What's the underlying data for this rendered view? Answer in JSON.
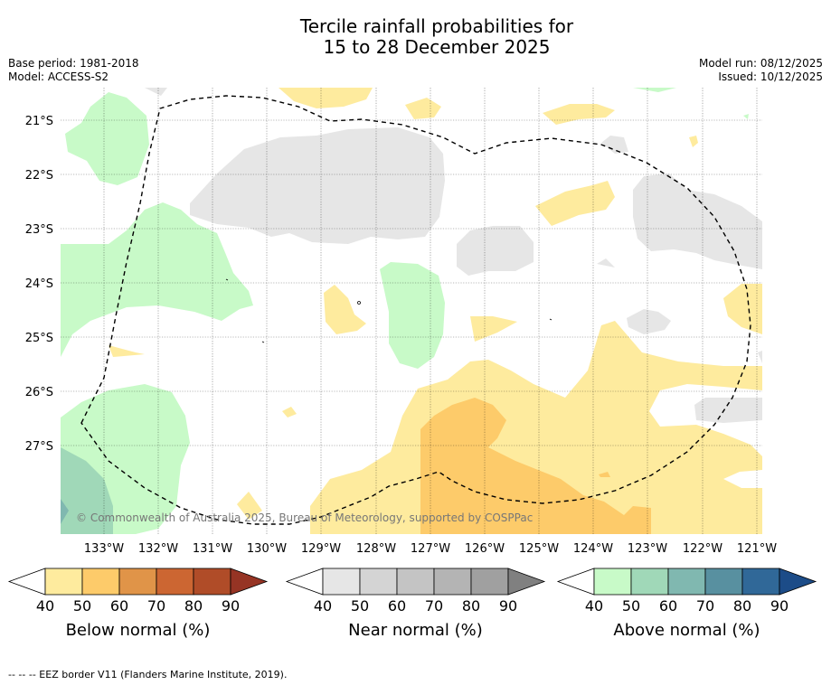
{
  "title": {
    "line1": "Tercile rainfall probabilities for",
    "line2": "15 to 28 December 2025"
  },
  "meta": {
    "base_period": "Base period: 1981-2018",
    "model": "Model: ACCESS-S2",
    "model_run": "Model run: 08/12/2025",
    "issued": "Issued: 10/12/2025"
  },
  "map": {
    "lat_labels": [
      "21°S",
      "22°S",
      "23°S",
      "24°S",
      "25°S",
      "26°S",
      "27°S"
    ],
    "lon_labels": [
      "133°W",
      "132°W",
      "131°W",
      "130°W",
      "129°W",
      "128°W",
      "127°W",
      "126°W",
      "125°W",
      "124°W",
      "123°W",
      "122°W",
      "121°W"
    ],
    "copyright": "© Commonwealth of Australia 2025, Bureau of Meteorology, supported by COSPPac"
  },
  "legends": [
    {
      "label": "Below normal (%)",
      "ticks": [
        "40",
        "50",
        "60",
        "70",
        "80",
        "90"
      ],
      "colors": [
        "#ffffff",
        "#feeb9e",
        "#fdcb6a",
        "#e09448",
        "#cc6632",
        "#b04c28",
        "#963424"
      ]
    },
    {
      "label": "Near normal (%)",
      "ticks": [
        "40",
        "50",
        "60",
        "70",
        "80",
        "90"
      ],
      "colors": [
        "#ffffff",
        "#e6e6e6",
        "#d4d4d4",
        "#c4c4c4",
        "#b4b4b4",
        "#a0a0a0",
        "#808080"
      ]
    },
    {
      "label": "Above normal (%)",
      "ticks": [
        "40",
        "50",
        "60",
        "70",
        "80",
        "90"
      ],
      "colors": [
        "#ffffff",
        "#c8fac8",
        "#a0d8b8",
        "#80b8b0",
        "#5890a0",
        "#306898",
        "#1c4c88"
      ]
    }
  ],
  "footer": "--  --  -- EEZ border V11 (Flanders Marine Institute, 2019)."
}
